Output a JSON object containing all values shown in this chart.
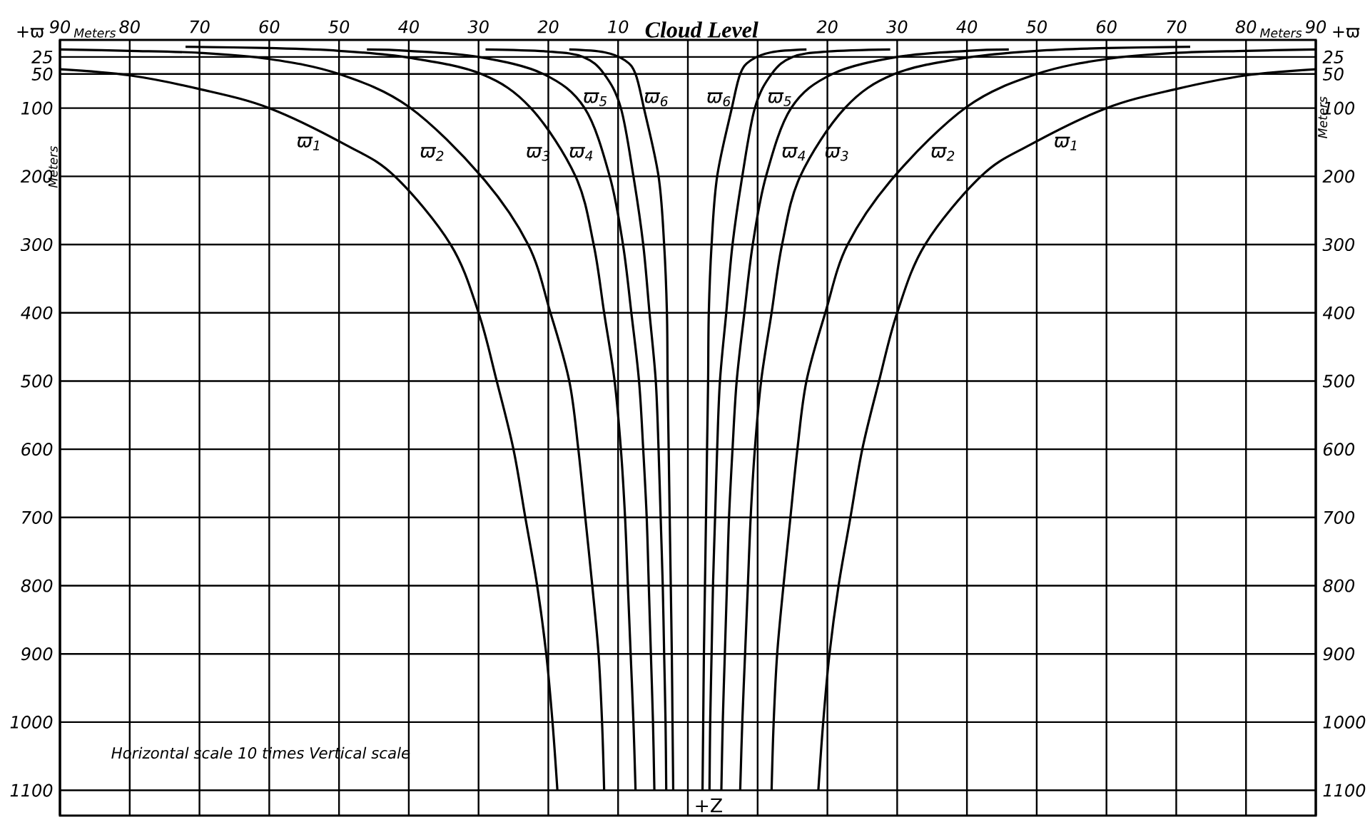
{
  "chart_data": {
    "type": "line",
    "xlabel": "Meters",
    "ylabel": "Meters",
    "y2label": "Meters",
    "annotations": [
      "Meters",
      "+ϖ",
      "+ϖ",
      "+Z",
      "Horizontal scale 10 times Vertical scale",
      "Cloud Level"
    ],
    "xlim": [
      -90,
      90
    ],
    "xticks": [
      {
        "value": -90,
        "label": "90"
      },
      {
        "value": -80,
        "label": "80"
      },
      {
        "value": -70,
        "label": "70"
      },
      {
        "value": -60,
        "label": "60"
      },
      {
        "value": -50,
        "label": "50"
      },
      {
        "value": -40,
        "label": "40"
      },
      {
        "value": -30,
        "label": "30"
      },
      {
        "value": -20,
        "label": "20"
      },
      {
        "value": -10,
        "label": "10"
      },
      {
        "value": 0,
        "label": null
      },
      {
        "value": 10,
        "label": null
      },
      20,
      30,
      40,
      50,
      60,
      70,
      80,
      90
    ],
    "ylim": [
      1137,
      0
    ],
    "yticks": [
      25,
      50,
      100,
      200,
      300,
      400,
      500,
      600,
      700,
      800,
      900,
      1000,
      1100
    ],
    "y2lim": [
      1137,
      0
    ],
    "y2ticks": [
      25,
      50,
      100,
      200,
      300,
      400,
      500,
      600,
      700,
      800,
      900,
      1000,
      1100
    ],
    "grid": true,
    "legend": false,
    "marker": "none",
    "line_style": "solid",
    "series": [
      {
        "name": "ϖ$_{1}$",
        "color": "#000000",
        "x": [
          -90,
          -80,
          -70,
          -60,
          -49,
          -42,
          -34,
          -30,
          -27.4,
          -25,
          -23.3,
          -21.6,
          -20.3,
          -19.4,
          -18.7,
          0,
          18.7,
          19.4,
          20.3,
          21.6,
          23.3,
          25,
          27.4,
          30,
          34,
          42,
          49,
          60,
          70,
          80,
          90
        ],
        "values": [
          43,
          52,
          72,
          100,
          154,
          200,
          300,
          400,
          500,
          600,
          700,
          800,
          900,
          1000,
          1100,
          null,
          1100,
          1000,
          900,
          800,
          700,
          600,
          500,
          400,
          300,
          200,
          154,
          100,
          72,
          52,
          43
        ]
      },
      {
        "name": "ϖ$_{2}$",
        "color": "#000000",
        "x": [
          -90,
          -80,
          -70,
          -60,
          -50,
          -40,
          -29.6,
          -22.9,
          -19.7,
          -17,
          -15.7,
          -14.7,
          -13.7,
          -12.8,
          -12.3,
          -12,
          0,
          12,
          12.3,
          12.8,
          13.7,
          14.7,
          15.7,
          17,
          19.7,
          22.9,
          29.6,
          40,
          50,
          60,
          70,
          80,
          90
        ],
        "values": [
          14,
          16,
          19,
          28,
          50,
          98,
          200,
          300,
          400,
          500,
          600,
          700,
          800,
          900,
          1000,
          1100,
          null,
          1100,
          1000,
          900,
          800,
          700,
          600,
          500,
          400,
          300,
          200,
          98,
          50,
          28,
          19,
          16,
          14
        ]
      },
      {
        "name": "ϖ$_{3}$",
        "color": "#000000",
        "x": [
          -72,
          -60,
          -50,
          -40,
          -29.6,
          -22.5,
          -16.1,
          -13.5,
          -12,
          -10.5,
          -9.6,
          -9,
          -8.6,
          -8.2,
          -7.8,
          -7.5,
          0,
          7.5,
          7.8,
          8.2,
          8.6,
          9,
          9.6,
          10.5,
          12,
          13.5,
          16.1,
          22.5,
          29.6,
          40,
          50,
          60,
          72
        ],
        "values": [
          10,
          12,
          16,
          26,
          50,
          100,
          200,
          300,
          400,
          500,
          600,
          700,
          800,
          900,
          1000,
          1100,
          null,
          1100,
          1000,
          900,
          800,
          700,
          600,
          500,
          400,
          300,
          200,
          100,
          50,
          26,
          16,
          12,
          10
        ]
      },
      {
        "name": "ϖ$_{4}$",
        "color": "#000000",
        "x": [
          -46,
          -40,
          -30,
          -20.7,
          -14.8,
          -11.2,
          -9.3,
          -8.1,
          -7,
          -6.4,
          -5.9,
          -5.6,
          -5.3,
          -5,
          -4.8,
          0,
          4.8,
          5,
          5.3,
          5.6,
          5.9,
          6.4,
          7,
          8.1,
          9.3,
          11.2,
          14.8,
          20.7,
          30,
          40,
          46
        ],
        "values": [
          14,
          16,
          25,
          50,
          100,
          200,
          300,
          400,
          500,
          600,
          700,
          800,
          900,
          1000,
          1100,
          null,
          1100,
          1000,
          900,
          800,
          700,
          600,
          500,
          400,
          300,
          200,
          100,
          50,
          25,
          16,
          14
        ]
      },
      {
        "name": "ϖ$_{5}$",
        "color": "#000000",
        "x": [
          -29,
          -20,
          -15,
          -12,
          -9.6,
          -7.8,
          -6.4,
          -5.5,
          -4.6,
          -4.2,
          -3.9,
          -3.6,
          -3.4,
          -3.2,
          -3.1,
          0,
          3.1,
          3.2,
          3.4,
          3.6,
          3.9,
          4.2,
          4.6,
          5.5,
          6.4,
          7.8,
          9.6,
          12,
          15,
          20,
          29
        ],
        "values": [
          14,
          17,
          25,
          50,
          100,
          200,
          300,
          400,
          500,
          600,
          700,
          800,
          900,
          1000,
          1100,
          null,
          1100,
          1000,
          900,
          800,
          700,
          600,
          500,
          400,
          300,
          200,
          100,
          50,
          25,
          17,
          14
        ]
      },
      {
        "name": "ϖ$_{6}$",
        "color": "#000000",
        "x": [
          -17,
          -12,
          -9,
          -7.5,
          -6.3,
          -4.2,
          -3.4,
          -3,
          -2.9,
          -2.75,
          -2.6,
          -2.45,
          -2.3,
          -2.2,
          -2.1,
          0,
          2.1,
          2.2,
          2.3,
          2.45,
          2.6,
          2.75,
          2.9,
          3,
          3.4,
          4.2,
          6.3,
          7.5,
          9,
          12,
          17
        ],
        "values": [
          14,
          18,
          30,
          50,
          100,
          200,
          300,
          400,
          500,
          600,
          700,
          800,
          900,
          1000,
          1100,
          null,
          1100,
          1000,
          900,
          800,
          700,
          600,
          500,
          400,
          300,
          200,
          100,
          50,
          30,
          18,
          14
        ]
      }
    ]
  }
}
